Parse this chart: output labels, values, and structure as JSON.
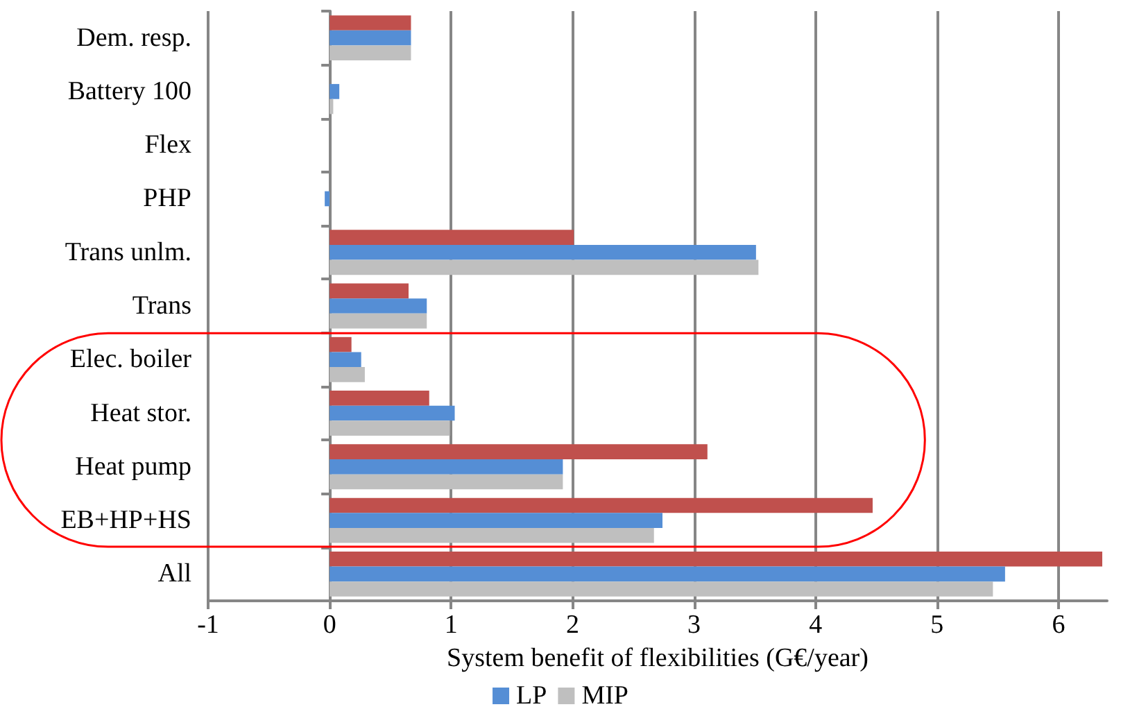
{
  "chart_data": {
    "type": "bar",
    "orientation": "horizontal",
    "categories": [
      "Dem. resp.",
      "Battery 100",
      "Flex",
      "PHP",
      "Trans unlm.",
      "Trans",
      "Elec. boiler",
      "Heat stor.",
      "Heat pump",
      "EB+HP+HS",
      "All"
    ],
    "series": [
      {
        "color": "#c0504d",
        "values": [
          0.67,
          0,
          0,
          0,
          2.01,
          0.65,
          0.18,
          0.82,
          3.11,
          4.47,
          6.36
        ]
      },
      {
        "name": "LP",
        "color": "#558ed5",
        "values": [
          0.67,
          0.08,
          0,
          -0.04,
          3.51,
          0.8,
          0.26,
          1.03,
          1.92,
          2.74,
          5.56
        ]
      },
      {
        "name": "MIP",
        "color": "#bfbfbf",
        "values": [
          0.67,
          0.03,
          0,
          0,
          3.53,
          0.8,
          0.29,
          0.99,
          1.92,
          2.67,
          5.46
        ]
      }
    ],
    "xlabel": "System benefit of flexibilities (G€/year)",
    "xlim": [
      -1,
      6.4
    ],
    "xticks": [
      -1,
      0,
      1,
      2,
      3,
      4,
      5,
      6
    ],
    "grid": "x",
    "legend": "bottom"
  }
}
